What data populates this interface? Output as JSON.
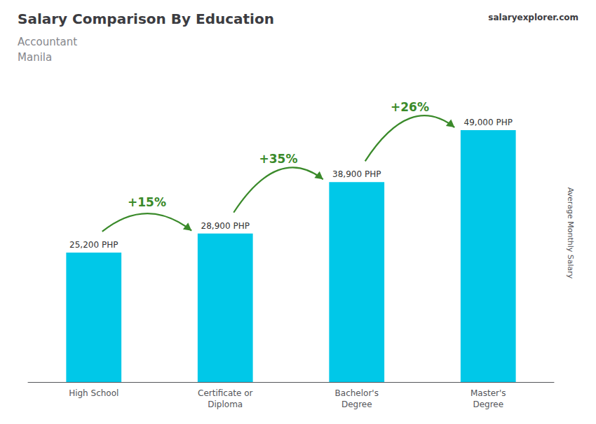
{
  "chart_data": {
    "type": "bar",
    "title": "Salary Comparison By Education",
    "subtitle": [
      "Accountant",
      "Manila"
    ],
    "ylabel": "Average Monthly Salary",
    "source": "salaryexplorer.com",
    "categories": [
      "High School",
      "Certificate or\nDiploma",
      "Bachelor's\nDegree",
      "Master's\nDegree"
    ],
    "values": [
      25200,
      28900,
      38900,
      49000
    ],
    "value_labels": [
      "25,200 PHP",
      "28,900 PHP",
      "38,900 PHP",
      "49,000 PHP"
    ],
    "data_labels": true,
    "color": "#00c8e8",
    "annotations": [
      "+15%",
      "+35%",
      "+26%"
    ],
    "ylim": [
      0,
      58000
    ],
    "tick_labels": "x",
    "grid": false
  }
}
